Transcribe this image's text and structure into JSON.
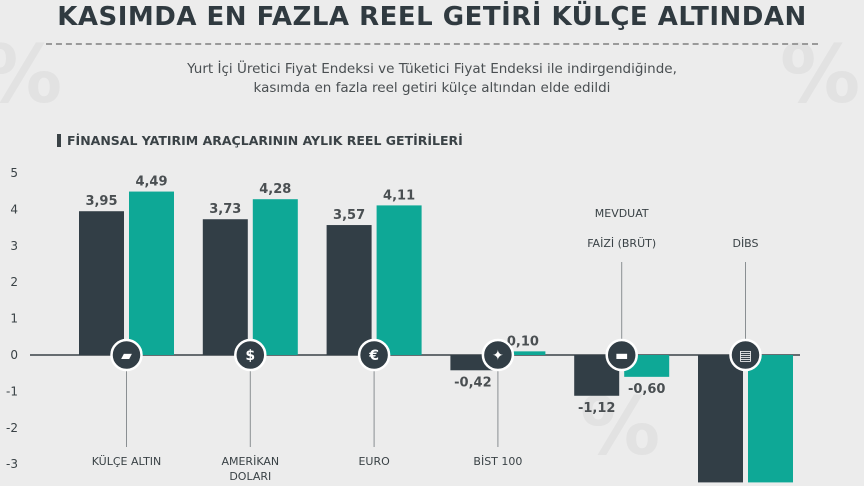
{
  "header": {
    "title": "KASIMDA EN FAZLA REEL GETİRİ KÜLÇE ALTINDAN",
    "subtitle_line1": "Yurt İçi Üretici Fiyat Endeksi ve Tüketici Fiyat Endeksi ile indirgendiğinde,",
    "subtitle_line2": "kasımda en fazla reel getiri külçe altından elde edildi"
  },
  "colors": {
    "dark": "#323e46",
    "teal": "#0ea896",
    "background": "#ececec",
    "axis": "#3a4246"
  },
  "chart_data": {
    "type": "bar",
    "title": "FİNANSAL YATIRIM ARAÇLARININ AYLIK REEL GETİRİLERİ",
    "ylim": [
      -3,
      5
    ],
    "yticks": [
      "5",
      "4",
      "3",
      "2",
      "1",
      "0",
      "-1",
      "-2",
      "-3"
    ],
    "categories": [
      {
        "label_lines": [
          "KÜLÇE ALTIN"
        ],
        "icon": "gold-bar-icon",
        "label_pos": "below"
      },
      {
        "label_lines": [
          "AMERİKAN",
          "DOLARI"
        ],
        "icon": "dollar-icon",
        "label_pos": "below"
      },
      {
        "label_lines": [
          "EURO"
        ],
        "icon": "euro-icon",
        "label_pos": "below"
      },
      {
        "label_lines": [
          "BİST 100"
        ],
        "icon": "stock-exchange-icon",
        "label_pos": "below"
      },
      {
        "label_lines": [
          "MEVDUAT",
          "FAİZİ (BRÜT)"
        ],
        "icon": "money-stack-icon",
        "label_pos": "above"
      },
      {
        "label_lines": [
          "DİBS"
        ],
        "icon": "document-icon",
        "label_pos": "above"
      }
    ],
    "series": [
      {
        "values": [
          3.95,
          3.73,
          3.57,
          -0.42,
          -1.12,
          -3.5
        ],
        "labels": [
          "3,95",
          "3,73",
          "3,57",
          "-0,42",
          "-1,12",
          ""
        ]
      },
      {
        "values": [
          4.49,
          4.28,
          4.11,
          0.1,
          -0.6,
          -3.5
        ],
        "labels": [
          "4,49",
          "4,28",
          "4,11",
          "0,10",
          "-0,60",
          ""
        ]
      }
    ]
  }
}
